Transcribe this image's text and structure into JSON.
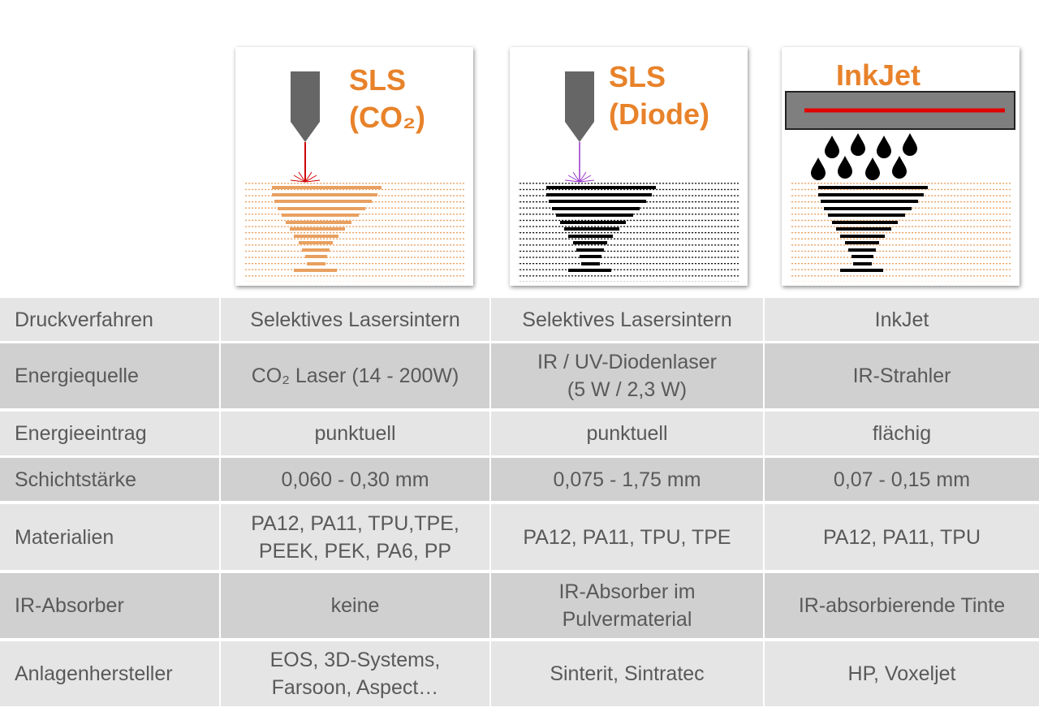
{
  "header": {
    "panels": [
      {
        "title": "SLS\n(CO₂)"
      },
      {
        "title": "SLS\n(Diode)"
      },
      {
        "title": "InkJet"
      }
    ]
  },
  "table": {
    "rows": [
      [
        "Druckverfahren",
        "Selektives Lasersintern",
        "Selektives Lasersintern",
        "InkJet"
      ],
      [
        "Energiequelle",
        "CO₂ Laser (14 - 200W)",
        "IR / UV-Diodenlaser\n(5 W / 2,3 W)",
        "IR-Strahler"
      ],
      [
        "Energieeintrag",
        "punktuell",
        "punktuell",
        "flächig"
      ],
      [
        "Schichtstärke",
        "0,060 - 0,30 mm",
        "0,075 - 1,75 mm",
        "0,07 - 0,15 mm"
      ],
      [
        "Materialien",
        "PA12, PA11, TPU,TPE,\nPEEK, PEK, PA6, PP",
        "PA12, PA11, TPU, TPE",
        "PA12, PA11, TPU"
      ],
      [
        "IR-Absorber",
        "keine",
        "IR-Absorber im\nPulvermaterial",
        "IR-absorbierende Tinte"
      ],
      [
        "Anlagenhersteller",
        "EOS, 3D-Systems,\nFarsoon, Aspect…",
        "Sinterit, Sintratec",
        "HP, Voxeljet"
      ]
    ]
  }
}
